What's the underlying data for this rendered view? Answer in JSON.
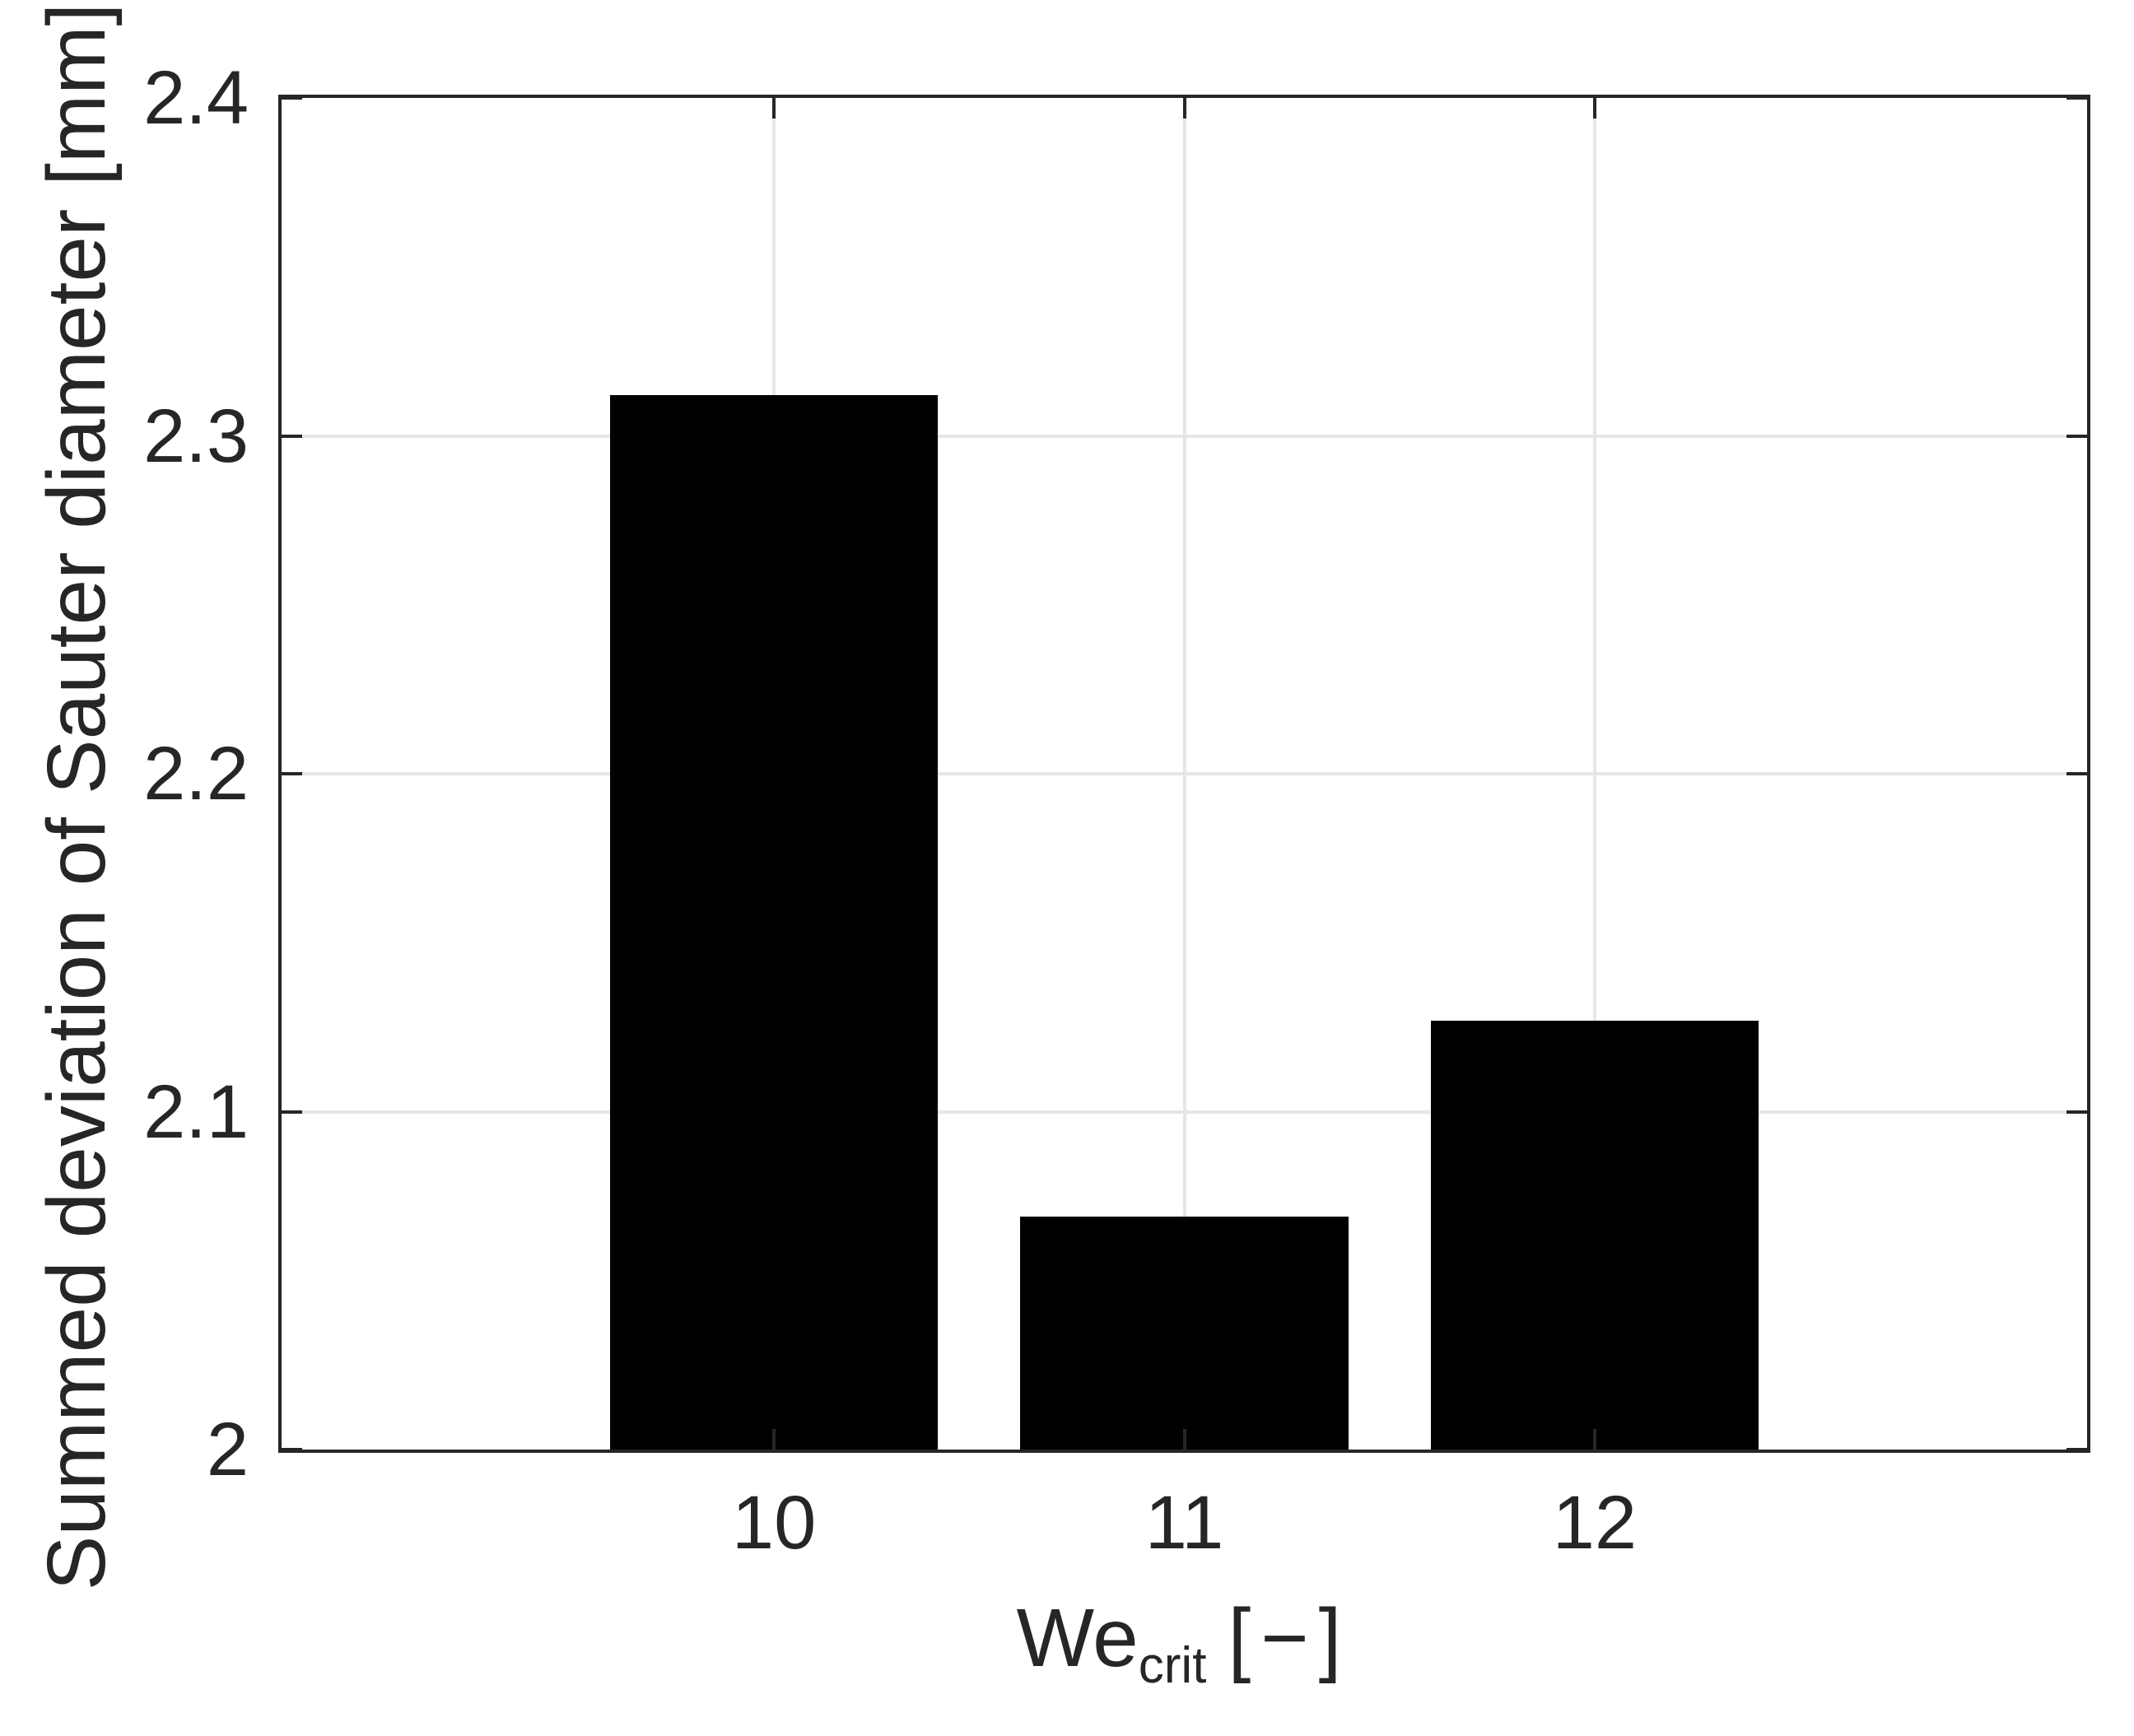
{
  "chart_data": {
    "type": "bar",
    "categories": [
      "10",
      "11",
      "12"
    ],
    "x": [
      10,
      11,
      12
    ],
    "values": [
      2.312,
      2.069,
      2.127
    ],
    "bar_width": 0.8,
    "bar_color": "#000000",
    "xlabel": {
      "base": "We",
      "subscript": "crit",
      "unit": "[−]"
    },
    "ylabel": "Summed deviation of Sauter diameter [mm]",
    "xlim": [
      8.8,
      13.2
    ],
    "ylim": [
      2.0,
      2.4
    ],
    "yticks": [
      2.0,
      2.1,
      2.2,
      2.3,
      2.4
    ],
    "ytick_labels": [
      "2",
      "2.1",
      "2.2",
      "2.3",
      "2.4"
    ],
    "xtick_labels": [
      "10",
      "11",
      "12"
    ],
    "grid": true,
    "grid_color": "#e6e6e6",
    "axis_color": "#262626",
    "tick_label_color": "#262626",
    "background_color": "#ffffff",
    "legend_position": "none",
    "tick_direction": "in"
  }
}
